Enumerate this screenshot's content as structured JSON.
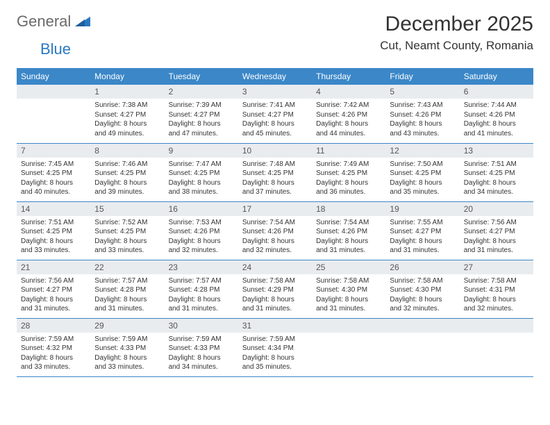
{
  "logo": {
    "part1": "General",
    "part2": "Blue"
  },
  "title": "December 2025",
  "location": "Cut, Neamt County, Romania",
  "colors": {
    "header_bg": "#3b87c8",
    "header_text": "#ffffff",
    "daynum_bg": "#e9ecef",
    "row_border": "#3b87c8",
    "brand_gray": "#6a6a6a",
    "brand_blue": "#2b78c2"
  },
  "weekdays": [
    "Sunday",
    "Monday",
    "Tuesday",
    "Wednesday",
    "Thursday",
    "Friday",
    "Saturday"
  ],
  "weeks": [
    [
      {
        "day": "",
        "sunrise": "",
        "sunset": "",
        "daylight": ""
      },
      {
        "day": "1",
        "sunrise": "Sunrise: 7:38 AM",
        "sunset": "Sunset: 4:27 PM",
        "daylight": "Daylight: 8 hours and 49 minutes."
      },
      {
        "day": "2",
        "sunrise": "Sunrise: 7:39 AM",
        "sunset": "Sunset: 4:27 PM",
        "daylight": "Daylight: 8 hours and 47 minutes."
      },
      {
        "day": "3",
        "sunrise": "Sunrise: 7:41 AM",
        "sunset": "Sunset: 4:27 PM",
        "daylight": "Daylight: 8 hours and 45 minutes."
      },
      {
        "day": "4",
        "sunrise": "Sunrise: 7:42 AM",
        "sunset": "Sunset: 4:26 PM",
        "daylight": "Daylight: 8 hours and 44 minutes."
      },
      {
        "day": "5",
        "sunrise": "Sunrise: 7:43 AM",
        "sunset": "Sunset: 4:26 PM",
        "daylight": "Daylight: 8 hours and 43 minutes."
      },
      {
        "day": "6",
        "sunrise": "Sunrise: 7:44 AM",
        "sunset": "Sunset: 4:26 PM",
        "daylight": "Daylight: 8 hours and 41 minutes."
      }
    ],
    [
      {
        "day": "7",
        "sunrise": "Sunrise: 7:45 AM",
        "sunset": "Sunset: 4:25 PM",
        "daylight": "Daylight: 8 hours and 40 minutes."
      },
      {
        "day": "8",
        "sunrise": "Sunrise: 7:46 AM",
        "sunset": "Sunset: 4:25 PM",
        "daylight": "Daylight: 8 hours and 39 minutes."
      },
      {
        "day": "9",
        "sunrise": "Sunrise: 7:47 AM",
        "sunset": "Sunset: 4:25 PM",
        "daylight": "Daylight: 8 hours and 38 minutes."
      },
      {
        "day": "10",
        "sunrise": "Sunrise: 7:48 AM",
        "sunset": "Sunset: 4:25 PM",
        "daylight": "Daylight: 8 hours and 37 minutes."
      },
      {
        "day": "11",
        "sunrise": "Sunrise: 7:49 AM",
        "sunset": "Sunset: 4:25 PM",
        "daylight": "Daylight: 8 hours and 36 minutes."
      },
      {
        "day": "12",
        "sunrise": "Sunrise: 7:50 AM",
        "sunset": "Sunset: 4:25 PM",
        "daylight": "Daylight: 8 hours and 35 minutes."
      },
      {
        "day": "13",
        "sunrise": "Sunrise: 7:51 AM",
        "sunset": "Sunset: 4:25 PM",
        "daylight": "Daylight: 8 hours and 34 minutes."
      }
    ],
    [
      {
        "day": "14",
        "sunrise": "Sunrise: 7:51 AM",
        "sunset": "Sunset: 4:25 PM",
        "daylight": "Daylight: 8 hours and 33 minutes."
      },
      {
        "day": "15",
        "sunrise": "Sunrise: 7:52 AM",
        "sunset": "Sunset: 4:25 PM",
        "daylight": "Daylight: 8 hours and 33 minutes."
      },
      {
        "day": "16",
        "sunrise": "Sunrise: 7:53 AM",
        "sunset": "Sunset: 4:26 PM",
        "daylight": "Daylight: 8 hours and 32 minutes."
      },
      {
        "day": "17",
        "sunrise": "Sunrise: 7:54 AM",
        "sunset": "Sunset: 4:26 PM",
        "daylight": "Daylight: 8 hours and 32 minutes."
      },
      {
        "day": "18",
        "sunrise": "Sunrise: 7:54 AM",
        "sunset": "Sunset: 4:26 PM",
        "daylight": "Daylight: 8 hours and 31 minutes."
      },
      {
        "day": "19",
        "sunrise": "Sunrise: 7:55 AM",
        "sunset": "Sunset: 4:27 PM",
        "daylight": "Daylight: 8 hours and 31 minutes."
      },
      {
        "day": "20",
        "sunrise": "Sunrise: 7:56 AM",
        "sunset": "Sunset: 4:27 PM",
        "daylight": "Daylight: 8 hours and 31 minutes."
      }
    ],
    [
      {
        "day": "21",
        "sunrise": "Sunrise: 7:56 AM",
        "sunset": "Sunset: 4:27 PM",
        "daylight": "Daylight: 8 hours and 31 minutes."
      },
      {
        "day": "22",
        "sunrise": "Sunrise: 7:57 AM",
        "sunset": "Sunset: 4:28 PM",
        "daylight": "Daylight: 8 hours and 31 minutes."
      },
      {
        "day": "23",
        "sunrise": "Sunrise: 7:57 AM",
        "sunset": "Sunset: 4:28 PM",
        "daylight": "Daylight: 8 hours and 31 minutes."
      },
      {
        "day": "24",
        "sunrise": "Sunrise: 7:58 AM",
        "sunset": "Sunset: 4:29 PM",
        "daylight": "Daylight: 8 hours and 31 minutes."
      },
      {
        "day": "25",
        "sunrise": "Sunrise: 7:58 AM",
        "sunset": "Sunset: 4:30 PM",
        "daylight": "Daylight: 8 hours and 31 minutes."
      },
      {
        "day": "26",
        "sunrise": "Sunrise: 7:58 AM",
        "sunset": "Sunset: 4:30 PM",
        "daylight": "Daylight: 8 hours and 32 minutes."
      },
      {
        "day": "27",
        "sunrise": "Sunrise: 7:58 AM",
        "sunset": "Sunset: 4:31 PM",
        "daylight": "Daylight: 8 hours and 32 minutes."
      }
    ],
    [
      {
        "day": "28",
        "sunrise": "Sunrise: 7:59 AM",
        "sunset": "Sunset: 4:32 PM",
        "daylight": "Daylight: 8 hours and 33 minutes."
      },
      {
        "day": "29",
        "sunrise": "Sunrise: 7:59 AM",
        "sunset": "Sunset: 4:33 PM",
        "daylight": "Daylight: 8 hours and 33 minutes."
      },
      {
        "day": "30",
        "sunrise": "Sunrise: 7:59 AM",
        "sunset": "Sunset: 4:33 PM",
        "daylight": "Daylight: 8 hours and 34 minutes."
      },
      {
        "day": "31",
        "sunrise": "Sunrise: 7:59 AM",
        "sunset": "Sunset: 4:34 PM",
        "daylight": "Daylight: 8 hours and 35 minutes."
      },
      {
        "day": "",
        "sunrise": "",
        "sunset": "",
        "daylight": ""
      },
      {
        "day": "",
        "sunrise": "",
        "sunset": "",
        "daylight": ""
      },
      {
        "day": "",
        "sunrise": "",
        "sunset": "",
        "daylight": ""
      }
    ]
  ]
}
